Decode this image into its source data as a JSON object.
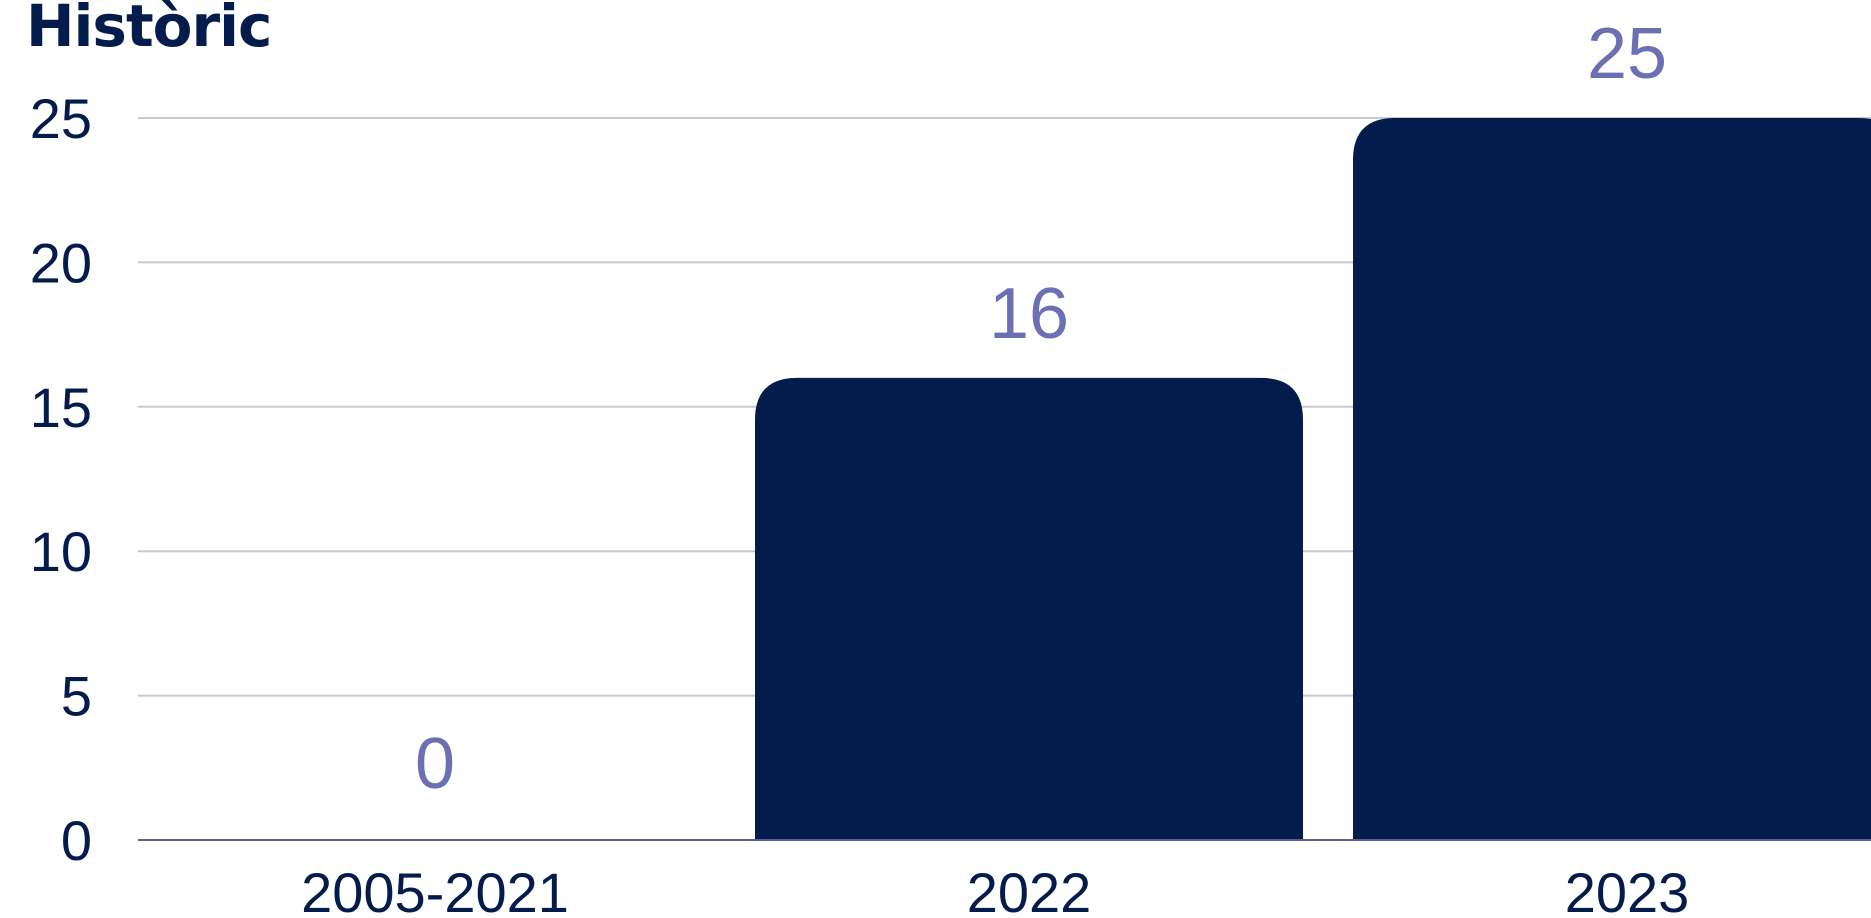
{
  "chart_data": {
    "type": "bar",
    "title": "Històric",
    "categories": [
      "2005-2021",
      "2022",
      "2023"
    ],
    "values": [
      0,
      16,
      25
    ],
    "ylim": [
      0,
      25
    ],
    "yticks": [
      0,
      5,
      10,
      15,
      20,
      25
    ],
    "grid": true,
    "legend": "none",
    "xlabel": "",
    "ylabel": "",
    "bar_color": "#031c4b",
    "data_label_color": "#6b6fb3",
    "grid_color": "#c8c8d4",
    "axis_color": "#5a5f87"
  }
}
